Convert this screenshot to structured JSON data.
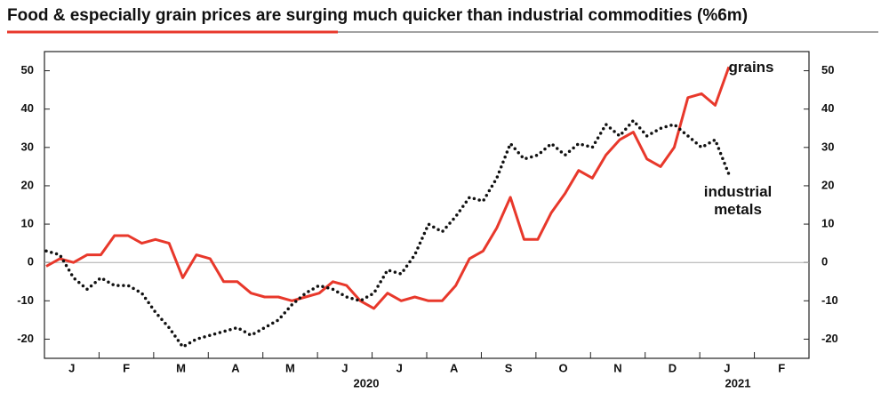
{
  "chart_data": {
    "type": "line",
    "title": "Food & especially grain prices are surging much quicker than industrial commodities (%6m)",
    "categories": [
      null,
      null,
      "J",
      null,
      null,
      null,
      "F",
      null,
      null,
      null,
      "M",
      null,
      null,
      null,
      "A",
      null,
      null,
      null,
      "M",
      null,
      null,
      null,
      "J",
      null,
      null,
      null,
      "J",
      null,
      null,
      null,
      "A",
      null,
      null,
      null,
      "S",
      null,
      null,
      null,
      "O",
      null,
      null,
      null,
      "N",
      null,
      null,
      null,
      "D",
      null,
      null,
      null,
      "J",
      null,
      null,
      null,
      "F",
      null
    ],
    "year_labels": [
      "2020",
      "2021"
    ],
    "series": [
      {
        "name": "grains",
        "color": "#e8382b",
        "style": "solid",
        "values": [
          -1,
          1,
          0,
          2,
          2,
          7,
          7,
          5,
          6,
          5,
          -4,
          2,
          1,
          -5,
          -5,
          -8,
          -9,
          -9,
          -10,
          -9,
          -8,
          -5,
          -6,
          -10,
          -12,
          -8,
          -10,
          -9,
          -10,
          -10,
          -6,
          1,
          3,
          9,
          17,
          6,
          6,
          13,
          18,
          24,
          22,
          28,
          32,
          34,
          27,
          25,
          30,
          43,
          44,
          41,
          51,
          null,
          null,
          null,
          null,
          null
        ]
      },
      {
        "name": "industrial metals",
        "color": "#111111",
        "style": "dotted",
        "values": [
          3,
          2,
          -4,
          -7,
          -4,
          -6,
          -6,
          -8,
          -13,
          -17,
          -22,
          -20,
          -19,
          -18,
          -17,
          -19,
          -17,
          -15,
          -11,
          -8,
          -6,
          -7,
          -9,
          -10,
          -8,
          -2,
          -3,
          2,
          10,
          8,
          12,
          17,
          16,
          22,
          31,
          27,
          28,
          31,
          28,
          31,
          30,
          36,
          33,
          37,
          33,
          35,
          36,
          33,
          30,
          32,
          23,
          null,
          null,
          null,
          null,
          null
        ]
      }
    ],
    "ylim": [
      -25,
      55
    ],
    "yticks": [
      -20,
      -10,
      0,
      10,
      20,
      30,
      40,
      50
    ],
    "y2lim": [
      -25,
      55
    ],
    "y2ticks": [
      -20,
      -10,
      0,
      10,
      20,
      30,
      40,
      50
    ],
    "zero_line": true
  }
}
